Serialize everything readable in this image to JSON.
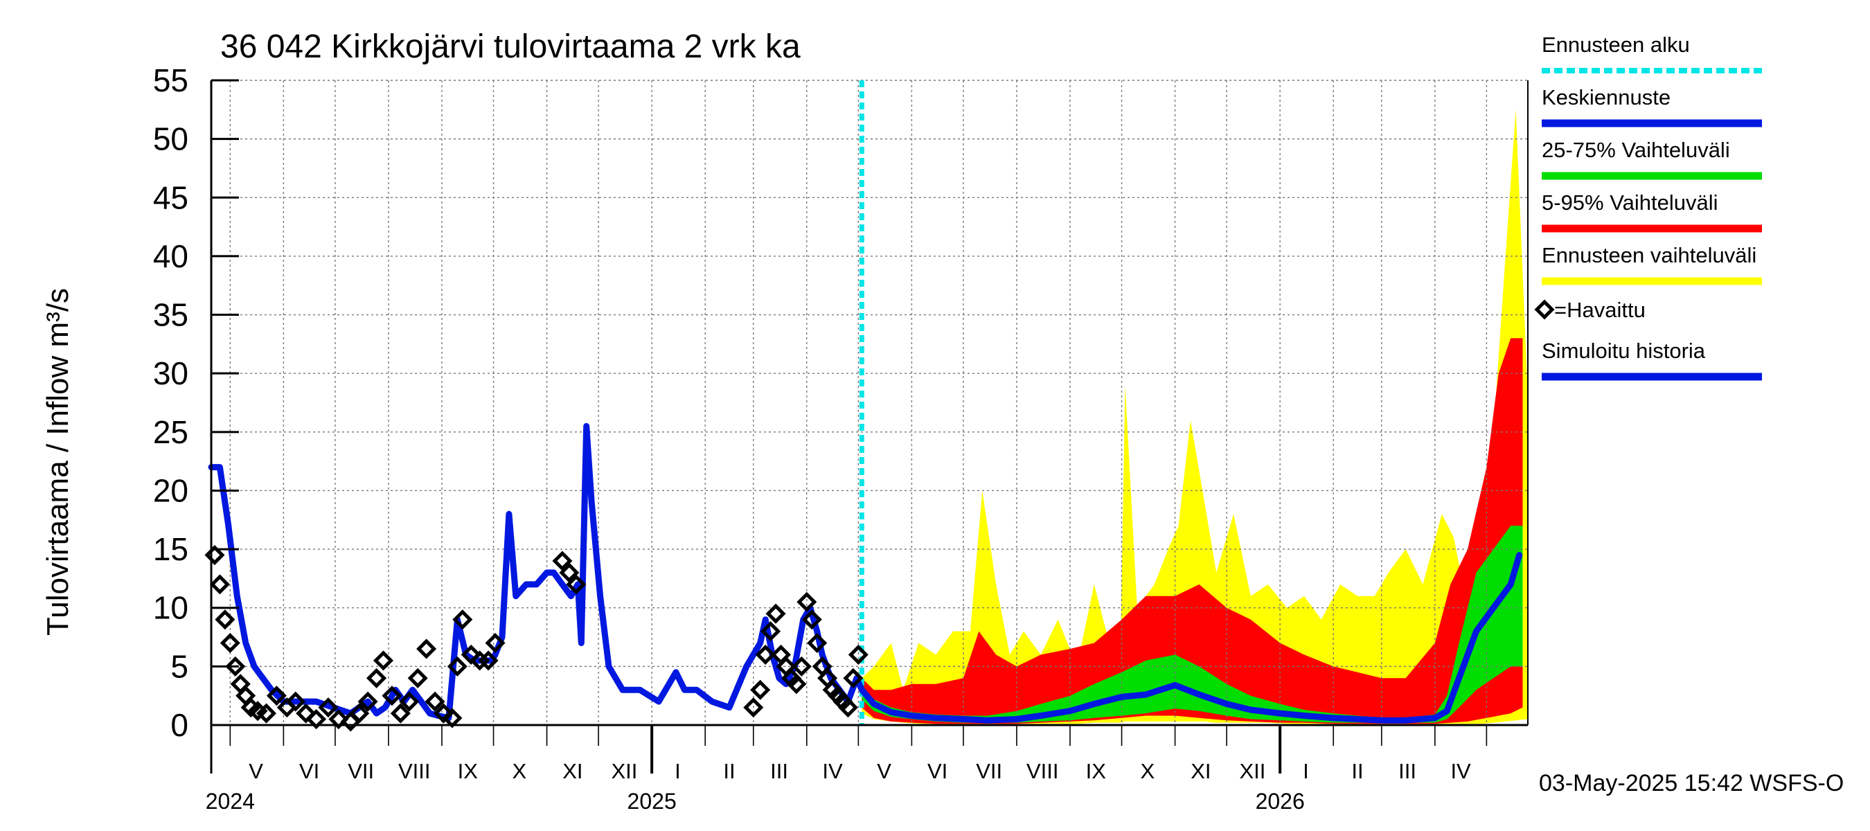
{
  "chart_data": {
    "type": "area",
    "title": "36 042 Kirkkojärvi tulovirtaama 2 vrk ka",
    "ylabel": "Tulovirtaama / Inflow    m³/s",
    "ylim": [
      0,
      55
    ],
    "yticks": [
      0,
      5,
      10,
      15,
      20,
      25,
      30,
      35,
      40,
      45,
      50,
      55
    ],
    "grid": true,
    "x_start": "2024-04-20",
    "x_end": "2026-05-25",
    "forecast_start": "2025-05-03",
    "month_labels": [
      {
        "label": "V",
        "date": "2024-05-16"
      },
      {
        "label": "VI",
        "date": "2024-06-16"
      },
      {
        "label": "VII",
        "date": "2024-07-16"
      },
      {
        "label": "VIII",
        "date": "2024-08-16"
      },
      {
        "label": "IX",
        "date": "2024-09-16"
      },
      {
        "label": "X",
        "date": "2024-10-16"
      },
      {
        "label": "XI",
        "date": "2024-11-16"
      },
      {
        "label": "XII",
        "date": "2024-12-16"
      },
      {
        "label": "I",
        "date": "2025-01-16"
      },
      {
        "label": "II",
        "date": "2025-02-15"
      },
      {
        "label": "III",
        "date": "2025-03-16"
      },
      {
        "label": "IV",
        "date": "2025-04-16"
      },
      {
        "label": "V",
        "date": "2025-05-16"
      },
      {
        "label": "VI",
        "date": "2025-06-16"
      },
      {
        "label": "VII",
        "date": "2025-07-16"
      },
      {
        "label": "VIII",
        "date": "2025-08-16"
      },
      {
        "label": "IX",
        "date": "2025-09-16"
      },
      {
        "label": "X",
        "date": "2025-10-16"
      },
      {
        "label": "XI",
        "date": "2025-11-16"
      },
      {
        "label": "XII",
        "date": "2025-12-16"
      },
      {
        "label": "I",
        "date": "2026-01-16"
      },
      {
        "label": "II",
        "date": "2026-02-15"
      },
      {
        "label": "III",
        "date": "2026-03-16"
      },
      {
        "label": "IV",
        "date": "2026-04-16"
      }
    ],
    "year_labels": [
      {
        "label": "2024",
        "date": "2024-05-01"
      },
      {
        "label": "2025",
        "date": "2025-01-01"
      },
      {
        "label": "2026",
        "date": "2026-01-01"
      }
    ],
    "legend": [
      {
        "label": "Ennusteen alku",
        "color": "#00e5e5",
        "style": "dashed"
      },
      {
        "label": "Keskiennuste",
        "color": "#0018e0",
        "style": "solid"
      },
      {
        "label": "25-75% Vaihteluväli",
        "color": "#00dd00",
        "style": "solid"
      },
      {
        "label": "5-95% Vaihteluväli",
        "color": "#ff0000",
        "style": "solid"
      },
      {
        "label": "Ennusteen vaihteluväli",
        "color": "#ffff00",
        "style": "solid"
      },
      {
        "label": "=Havaittu",
        "color": "#000000",
        "style": "marker"
      },
      {
        "label": "Simuloitu historia",
        "color": "#0018e0",
        "style": "solid"
      }
    ],
    "footer": "03-May-2025 15:42 WSFS-O",
    "series": [
      {
        "name": "Simuloitu historia",
        "color": "#0018e0",
        "x": [
          "2024-04-20",
          "2024-04-25",
          "2024-04-30",
          "2024-05-05",
          "2024-05-10",
          "2024-05-15",
          "2024-05-20",
          "2024-05-25",
          "2024-06-01",
          "2024-06-10",
          "2024-06-20",
          "2024-06-30",
          "2024-07-10",
          "2024-07-15",
          "2024-07-20",
          "2024-07-25",
          "2024-07-30",
          "2024-08-05",
          "2024-08-10",
          "2024-08-15",
          "2024-08-20",
          "2024-08-25",
          "2024-08-30",
          "2024-09-05",
          "2024-09-10",
          "2024-09-15",
          "2024-09-20",
          "2024-09-25",
          "2024-09-30",
          "2024-10-02",
          "2024-10-06",
          "2024-10-10",
          "2024-10-14",
          "2024-10-20",
          "2024-10-26",
          "2024-11-01",
          "2024-11-05",
          "2024-11-10",
          "2024-11-15",
          "2024-11-19",
          "2024-11-21",
          "2024-11-24",
          "2024-11-27",
          "2024-12-02",
          "2024-12-07",
          "2024-12-15",
          "2024-12-25",
          "2025-01-05",
          "2025-01-15",
          "2025-01-20",
          "2025-01-27",
          "2025-02-05",
          "2025-02-15",
          "2025-02-25",
          "2025-03-05",
          "2025-03-08",
          "2025-03-12",
          "2025-03-16",
          "2025-03-20",
          "2025-03-25",
          "2025-03-30",
          "2025-04-03",
          "2025-04-07",
          "2025-04-10",
          "2025-04-15",
          "2025-04-20",
          "2025-04-25",
          "2025-04-30",
          "2025-05-03"
        ],
        "values": [
          22,
          22,
          17,
          11,
          7,
          5,
          4,
          3,
          2,
          2,
          2,
          1.5,
          1,
          1.5,
          2,
          1,
          1.5,
          3,
          2,
          3,
          2,
          1,
          0.8,
          0.6,
          9,
          6,
          5.5,
          5.5,
          5.5,
          6,
          7.5,
          18,
          11,
          12,
          12,
          13,
          13,
          12,
          11,
          12,
          7,
          25.5,
          19,
          11,
          5,
          3,
          3,
          2,
          4.5,
          3,
          3,
          2,
          1.5,
          5,
          7,
          9,
          6,
          4,
          3.5,
          5,
          9,
          10,
          8,
          6,
          4,
          3,
          2,
          4,
          3
        ]
      },
      {
        "name": "Keskiennuste",
        "color": "#0018e0",
        "x": [
          "2025-05-03",
          "2025-05-10",
          "2025-05-20",
          "2025-06-01",
          "2025-06-15",
          "2025-07-01",
          "2025-07-15",
          "2025-08-01",
          "2025-08-15",
          "2025-09-01",
          "2025-09-15",
          "2025-10-01",
          "2025-10-15",
          "2025-11-01",
          "2025-11-15",
          "2025-12-01",
          "2025-12-15",
          "2026-01-01",
          "2026-01-15",
          "2026-02-01",
          "2026-02-15",
          "2026-03-01",
          "2026-03-15",
          "2026-04-01",
          "2026-04-08",
          "2026-04-15",
          "2026-04-25",
          "2026-05-05",
          "2026-05-15",
          "2026-05-20"
        ],
        "values": [
          3,
          1.8,
          1.1,
          0.8,
          0.6,
          0.5,
          0.4,
          0.5,
          0.8,
          1.2,
          1.8,
          2.4,
          2.6,
          3.4,
          2.6,
          1.8,
          1.3,
          1,
          0.8,
          0.6,
          0.5,
          0.4,
          0.4,
          0.6,
          1.2,
          4,
          8,
          10,
          12,
          14.5
        ]
      },
      {
        "name": "Havaittu",
        "color": "#000000",
        "x": [
          "2024-04-22",
          "2024-04-25",
          "2024-04-28",
          "2024-05-01",
          "2024-05-04",
          "2024-05-07",
          "2024-05-10",
          "2024-05-13",
          "2024-05-17",
          "2024-05-22",
          "2024-05-28",
          "2024-06-03",
          "2024-06-08",
          "2024-06-14",
          "2024-06-20",
          "2024-06-27",
          "2024-07-03",
          "2024-07-10",
          "2024-07-15",
          "2024-07-20",
          "2024-07-25",
          "2024-07-29",
          "2024-08-03",
          "2024-08-08",
          "2024-08-13",
          "2024-08-18",
          "2024-08-23",
          "2024-08-28",
          "2024-09-02",
          "2024-09-07",
          "2024-09-10",
          "2024-09-13",
          "2024-09-18",
          "2024-09-23",
          "2024-09-28",
          "2024-10-02",
          "2024-11-10",
          "2024-11-14",
          "2024-11-18",
          "2025-03-01",
          "2025-03-05",
          "2025-03-08",
          "2025-03-11",
          "2025-03-14",
          "2025-03-17",
          "2025-03-20",
          "2025-03-23",
          "2025-03-26",
          "2025-03-29",
          "2025-04-01",
          "2025-04-04",
          "2025-04-07",
          "2025-04-10",
          "2025-04-13",
          "2025-04-16",
          "2025-04-19",
          "2025-04-22",
          "2025-04-25",
          "2025-04-28",
          "2025-05-01"
        ],
        "values": [
          14.5,
          12,
          9,
          7,
          5,
          3.5,
          2.5,
          1.5,
          1.2,
          1,
          2.5,
          1.5,
          2,
          1,
          0.5,
          1.5,
          0.5,
          0.3,
          1,
          2,
          4,
          5.5,
          2.5,
          1,
          2,
          4,
          6.5,
          2,
          1,
          0.6,
          5,
          9,
          6,
          5.5,
          5.5,
          7,
          14,
          13,
          12,
          1.5,
          3,
          6,
          8,
          9.5,
          6,
          5,
          4,
          3.5,
          5,
          10.5,
          9,
          7,
          5,
          4,
          3,
          2.5,
          2,
          1.5,
          4,
          6
        ]
      }
    ],
    "bands": [
      {
        "name": "Ennusteen vaihteluväli",
        "color": "#ffff00",
        "x": [
          "2025-05-03",
          "2025-05-10",
          "2025-05-20",
          "2025-05-27",
          "2025-06-05",
          "2025-06-15",
          "2025-06-25",
          "2025-07-05",
          "2025-07-12",
          "2025-07-20",
          "2025-07-28",
          "2025-08-05",
          "2025-08-15",
          "2025-08-25",
          "2025-09-05",
          "2025-09-15",
          "2025-09-22",
          "2025-09-30",
          "2025-10-03",
          "2025-10-10",
          "2025-10-20",
          "2025-10-28",
          "2025-11-03",
          "2025-11-10",
          "2025-11-17",
          "2025-11-25",
          "2025-12-05",
          "2025-12-15",
          "2025-12-25",
          "2026-01-05",
          "2026-01-15",
          "2026-01-25",
          "2026-02-05",
          "2026-02-15",
          "2026-02-25",
          "2026-03-05",
          "2026-03-15",
          "2026-03-25",
          "2026-04-05",
          "2026-04-12",
          "2026-04-20",
          "2026-04-28",
          "2026-05-05",
          "2026-05-12",
          "2026-05-18",
          "2026-05-25"
        ],
        "upper": [
          4,
          5,
          7,
          3,
          7,
          6,
          8,
          8,
          20,
          12,
          6,
          8,
          6,
          9,
          5,
          12,
          8,
          4,
          29,
          10,
          12,
          15,
          17,
          26,
          20,
          13,
          18,
          11,
          12,
          10,
          11,
          9,
          12,
          11,
          11,
          13,
          15,
          12,
          18,
          16,
          10,
          16,
          25,
          40,
          52.5,
          28
        ],
        "lower": [
          1,
          0.5,
          0.3,
          0.2,
          0.1,
          0.1,
          0.1,
          0.1,
          0.1,
          0.1,
          0.1,
          0.1,
          0.1,
          0.1,
          0.1,
          0.2,
          0.2,
          0.2,
          0.3,
          0.3,
          0.3,
          0.3,
          0.3,
          0.3,
          0.3,
          0.2,
          0.2,
          0.2,
          0.2,
          0.1,
          0.1,
          0.1,
          0.1,
          0.1,
          0.1,
          0.1,
          0.1,
          0.1,
          0.1,
          0.1,
          0.1,
          0.1,
          0.2,
          0.3,
          0.4,
          0.5
        ]
      },
      {
        "name": "5-95% Vaihteluväli",
        "color": "#ff0000",
        "x": [
          "2025-05-03",
          "2025-05-10",
          "2025-05-20",
          "2025-06-01",
          "2025-06-15",
          "2025-07-01",
          "2025-07-10",
          "2025-07-20",
          "2025-08-01",
          "2025-08-15",
          "2025-09-01",
          "2025-09-15",
          "2025-10-01",
          "2025-10-15",
          "2025-11-01",
          "2025-11-15",
          "2025-12-01",
          "2025-12-15",
          "2026-01-01",
          "2026-01-15",
          "2026-02-01",
          "2026-02-15",
          "2026-03-01",
          "2026-03-15",
          "2026-04-01",
          "2026-04-10",
          "2026-04-20",
          "2026-05-01",
          "2026-05-08",
          "2026-05-15",
          "2026-05-22"
        ],
        "upper": [
          4,
          3,
          3,
          3.5,
          3.5,
          4,
          8,
          6,
          5,
          6,
          6.5,
          7,
          9,
          11,
          11,
          12,
          10,
          9,
          7,
          6,
          5,
          4.5,
          4,
          4,
          7,
          12,
          15,
          22,
          30,
          33,
          33
        ],
        "lower": [
          1.5,
          0.6,
          0.3,
          0.2,
          0.1,
          0.1,
          0.1,
          0.1,
          0.1,
          0.2,
          0.3,
          0.4,
          0.6,
          0.8,
          0.8,
          0.6,
          0.4,
          0.3,
          0.2,
          0.2,
          0.1,
          0.1,
          0.1,
          0.1,
          0.1,
          0.2,
          0.3,
          0.6,
          0.8,
          1,
          1.5
        ]
      },
      {
        "name": "25-75% Vaihteluväli",
        "color": "#00dd00",
        "x": [
          "2025-05-03",
          "2025-05-10",
          "2025-05-20",
          "2025-06-01",
          "2025-06-15",
          "2025-07-01",
          "2025-07-15",
          "2025-08-01",
          "2025-08-15",
          "2025-09-01",
          "2025-09-15",
          "2025-10-01",
          "2025-10-15",
          "2025-11-01",
          "2025-11-15",
          "2025-12-01",
          "2025-12-15",
          "2026-01-01",
          "2026-01-15",
          "2026-02-01",
          "2026-02-15",
          "2026-03-01",
          "2026-03-15",
          "2026-04-01",
          "2026-04-08",
          "2026-04-15",
          "2026-04-25",
          "2026-05-05",
          "2026-05-15",
          "2026-05-22"
        ],
        "upper": [
          3,
          2.2,
          1.5,
          1.1,
          0.9,
          0.8,
          0.8,
          1.2,
          1.8,
          2.5,
          3.5,
          4.5,
          5.5,
          6,
          5,
          3.5,
          2.5,
          1.8,
          1.3,
          1,
          0.8,
          0.6,
          0.6,
          0.9,
          2.5,
          7,
          13,
          15,
          17,
          17
        ],
        "lower": [
          2.2,
          1.2,
          0.7,
          0.5,
          0.3,
          0.2,
          0.2,
          0.2,
          0.3,
          0.4,
          0.6,
          0.8,
          1,
          1.4,
          1.2,
          0.8,
          0.5,
          0.4,
          0.3,
          0.2,
          0.2,
          0.2,
          0.2,
          0.2,
          0.5,
          1.5,
          3,
          4,
          5,
          5
        ]
      }
    ]
  }
}
